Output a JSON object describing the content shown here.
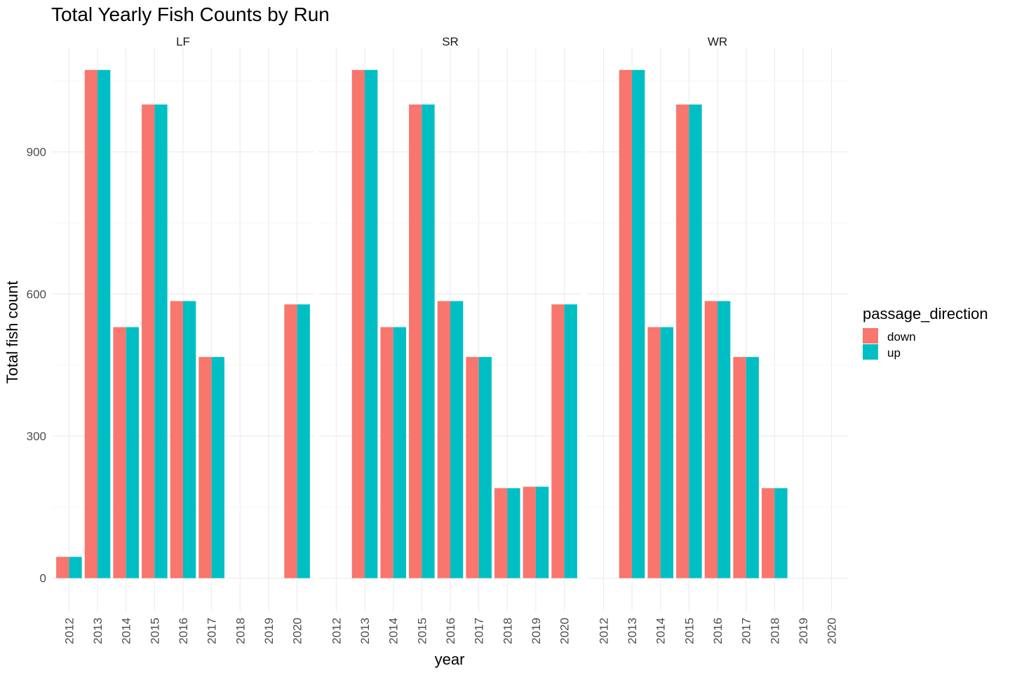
{
  "chart_data": {
    "type": "bar",
    "title": "Total Yearly Fish Counts by Run",
    "xlabel": "year",
    "ylabel": "Total fish count",
    "ylim": [
      -70,
      1120
    ],
    "yticks": [
      0,
      300,
      600,
      900
    ],
    "grid": true,
    "legend": {
      "title": "passage_direction",
      "position": "right",
      "entries": [
        "down",
        "up"
      ]
    },
    "colors": {
      "down": "#F8766D",
      "up": "#00BFC4"
    },
    "categories": [
      "2012",
      "2013",
      "2014",
      "2015",
      "2016",
      "2017",
      "2018",
      "2019",
      "2020"
    ],
    "facets": [
      {
        "label": "LF",
        "series": [
          {
            "name": "down",
            "values": [
              45,
              1073,
              530,
              1000,
              585,
              467,
              null,
              null,
              578
            ]
          },
          {
            "name": "up",
            "values": [
              45,
              1073,
              530,
              1000,
              585,
              467,
              null,
              null,
              578
            ]
          }
        ]
      },
      {
        "label": "SR",
        "series": [
          {
            "name": "down",
            "values": [
              null,
              1073,
              530,
              1000,
              585,
              467,
              190,
              193,
              578
            ]
          },
          {
            "name": "up",
            "values": [
              null,
              1073,
              530,
              1000,
              585,
              467,
              190,
              193,
              578
            ]
          }
        ]
      },
      {
        "label": "WR",
        "series": [
          {
            "name": "down",
            "values": [
              null,
              1073,
              530,
              1000,
              585,
              467,
              190,
              null,
              null
            ]
          },
          {
            "name": "up",
            "values": [
              null,
              1073,
              530,
              1000,
              585,
              467,
              190,
              null,
              null
            ]
          }
        ]
      }
    ]
  }
}
